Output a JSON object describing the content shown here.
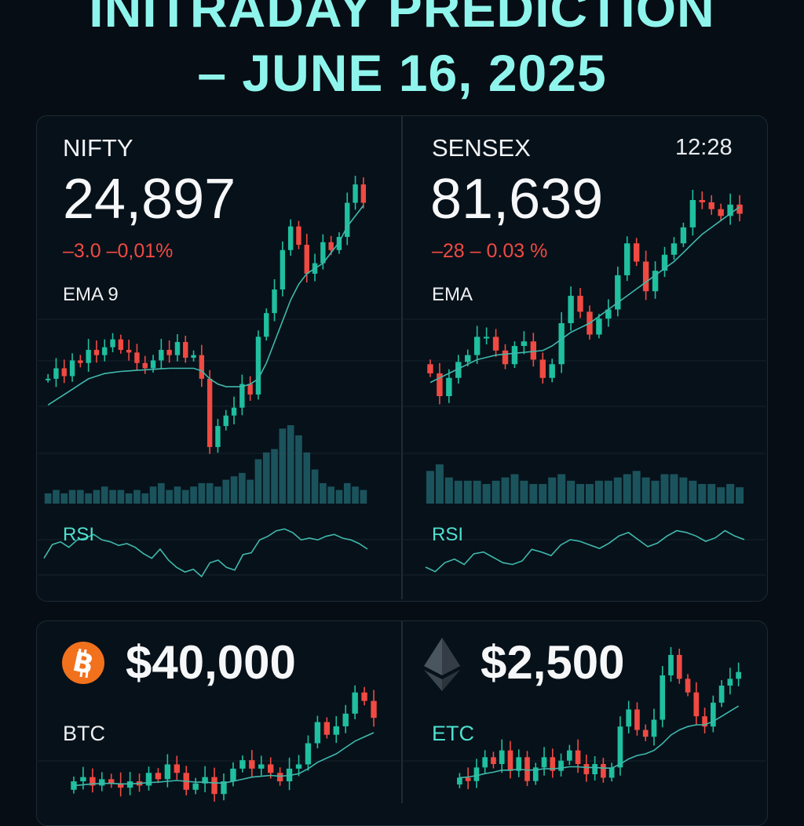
{
  "header": {
    "line1": "INITRADAY PREDICTION",
    "line2": "– JUNE 16, 2025"
  },
  "colors": {
    "accent": "#8ff5ec",
    "up": "#1fbf9f",
    "down": "#f04a42",
    "ema": "#3fb9ac",
    "volume": "#1f5f68",
    "grid": "#16222c",
    "bitcoin": "#f2711c"
  },
  "nifty": {
    "label": "NIFTY",
    "price": "24,897",
    "change": "–3.0 –0,01%",
    "indicator": "EMA 9",
    "rsi_label": "RSI"
  },
  "sensex": {
    "label": "SENSEX",
    "time": "12:28",
    "price": "81,639",
    "change": "–28  – 0.03 %",
    "indicator": "EMA",
    "rsi_label": "RSI"
  },
  "btc": {
    "icon": "bitcoin-icon",
    "price": "$40,000",
    "label": "BTC"
  },
  "eth": {
    "icon": "ethereum-icon",
    "price": "$2,500",
    "label": "ETC"
  },
  "chart_data": [
    {
      "type": "candlestick",
      "id": "nifty",
      "title": "NIFTY",
      "candles": [
        [
          0.5,
          0.5
        ],
        [
          0.5,
          0.7
        ],
        [
          0.7,
          0.55
        ],
        [
          0.55,
          0.85
        ],
        [
          0.85,
          0.8
        ],
        [
          0.8,
          1.05
        ],
        [
          1.05,
          0.95
        ],
        [
          0.95,
          1.1
        ],
        [
          1.1,
          1.25
        ],
        [
          1.25,
          1.05
        ],
        [
          1.05,
          1.0
        ],
        [
          1.0,
          0.8
        ],
        [
          0.8,
          0.7
        ],
        [
          0.7,
          0.85
        ],
        [
          0.85,
          1.05
        ],
        [
          1.05,
          0.95
        ],
        [
          0.95,
          1.2
        ],
        [
          1.2,
          0.9
        ],
        [
          0.9,
          0.95
        ],
        [
          0.95,
          0.5
        ],
        [
          0.5,
          -0.8
        ],
        [
          -0.8,
          -0.4
        ],
        [
          -0.4,
          -0.2
        ],
        [
          -0.2,
          -0.05
        ],
        [
          -0.05,
          0.4
        ],
        [
          0.4,
          0.2
        ],
        [
          0.2,
          1.3
        ],
        [
          1.3,
          1.75
        ],
        [
          1.75,
          2.2
        ],
        [
          2.2,
          2.95
        ],
        [
          2.95,
          3.4
        ],
        [
          3.4,
          3.05
        ],
        [
          3.05,
          2.5
        ],
        [
          2.5,
          2.7
        ],
        [
          2.7,
          3.1
        ],
        [
          3.1,
          2.95
        ],
        [
          2.95,
          3.2
        ],
        [
          3.2,
          3.85
        ],
        [
          3.85,
          4.2
        ],
        [
          4.2,
          3.85
        ]
      ],
      "volume": [
        3,
        4,
        3,
        4,
        4,
        3,
        4,
        5,
        4,
        4,
        3,
        4,
        3,
        5,
        6,
        4,
        5,
        4,
        5,
        6,
        6,
        5,
        7,
        8,
        9,
        7,
        13,
        15,
        16,
        22,
        23,
        20,
        15,
        10,
        6,
        5,
        4,
        6,
        5,
        4
      ],
      "ema": [
        0.0,
        0.1,
        0.2,
        0.3,
        0.4,
        0.5,
        0.55,
        0.6,
        0.62,
        0.64,
        0.65,
        0.66,
        0.67,
        0.68,
        0.69,
        0.7,
        0.7,
        0.7,
        0.7,
        0.65,
        0.5,
        0.4,
        0.35,
        0.35,
        0.35,
        0.4,
        0.5,
        0.8,
        1.2,
        1.6,
        2.0,
        2.3,
        2.5,
        2.6,
        2.7,
        2.9,
        3.1,
        3.4,
        3.6,
        3.8
      ],
      "rsi": [
        40,
        55,
        58,
        52,
        60,
        62,
        66,
        60,
        58,
        54,
        56,
        52,
        45,
        40,
        50,
        38,
        30,
        25,
        28,
        20,
        35,
        38,
        30,
        27,
        44,
        46,
        60,
        64,
        70,
        72,
        68,
        60,
        62,
        60,
        64,
        66,
        62,
        60,
        56,
        50
      ]
    },
    {
      "type": "candlestick",
      "id": "sensex",
      "title": "SENSEX",
      "candles": [
        [
          0.4,
          0.2
        ],
        [
          0.2,
          -0.3
        ],
        [
          -0.3,
          0.1
        ],
        [
          0.1,
          0.45
        ],
        [
          0.45,
          0.6
        ],
        [
          0.6,
          1.0
        ],
        [
          1.0,
          1.0
        ],
        [
          1.0,
          0.7
        ],
        [
          0.7,
          0.4
        ],
        [
          0.4,
          0.8
        ],
        [
          0.8,
          0.9
        ],
        [
          0.9,
          0.5
        ],
        [
          0.5,
          0.1
        ],
        [
          0.1,
          0.4
        ],
        [
          0.4,
          1.3
        ],
        [
          1.3,
          1.9
        ],
        [
          1.9,
          1.55
        ],
        [
          1.55,
          1.05
        ],
        [
          1.05,
          1.4
        ],
        [
          1.4,
          1.6
        ],
        [
          1.6,
          2.35
        ],
        [
          2.35,
          3.05
        ],
        [
          3.05,
          2.65
        ],
        [
          2.65,
          2.0
        ],
        [
          2.0,
          2.45
        ],
        [
          2.45,
          2.8
        ],
        [
          2.8,
          3.05
        ],
        [
          3.05,
          3.4
        ],
        [
          3.4,
          4.0
        ],
        [
          4.0,
          3.95
        ],
        [
          3.95,
          3.8
        ],
        [
          3.8,
          3.65
        ],
        [
          3.65,
          3.9
        ],
        [
          3.9,
          3.7
        ]
      ],
      "volume": [
        10,
        12,
        8,
        7,
        7,
        7,
        6,
        7,
        8,
        9,
        7,
        6,
        6,
        8,
        9,
        7,
        6,
        6,
        7,
        7,
        8,
        9,
        10,
        8,
        7,
        9,
        9,
        8,
        7,
        6,
        6,
        5,
        6,
        5
      ],
      "ema": [
        0.0,
        0.1,
        0.2,
        0.3,
        0.4,
        0.5,
        0.55,
        0.6,
        0.62,
        0.64,
        0.66,
        0.68,
        0.7,
        0.8,
        0.95,
        1.1,
        1.2,
        1.3,
        1.45,
        1.6,
        1.75,
        1.9,
        2.05,
        2.2,
        2.35,
        2.5,
        2.65,
        2.85,
        3.05,
        3.25,
        3.4,
        3.55,
        3.7,
        3.85
      ],
      "rsi": [
        35,
        30,
        40,
        44,
        38,
        50,
        52,
        46,
        40,
        38,
        42,
        55,
        52,
        48,
        60,
        66,
        64,
        60,
        56,
        62,
        70,
        74,
        66,
        58,
        62,
        70,
        76,
        74,
        70,
        64,
        68,
        76,
        70,
        66
      ]
    },
    {
      "type": "candlestick",
      "id": "btc",
      "title": "BTC",
      "candles": [
        [
          0.3,
          0.5
        ],
        [
          0.5,
          0.6
        ],
        [
          0.6,
          0.4
        ],
        [
          0.4,
          0.55
        ],
        [
          0.55,
          0.45
        ],
        [
          0.45,
          0.35
        ],
        [
          0.35,
          0.5
        ],
        [
          0.5,
          0.4
        ],
        [
          0.4,
          0.7
        ],
        [
          0.7,
          0.55
        ],
        [
          0.55,
          0.9
        ],
        [
          0.9,
          0.7
        ],
        [
          0.7,
          0.3
        ],
        [
          0.3,
          0.45
        ],
        [
          0.45,
          0.6
        ],
        [
          0.6,
          0.2
        ],
        [
          0.2,
          0.5
        ],
        [
          0.5,
          0.8
        ],
        [
          0.8,
          1.0
        ],
        [
          1.0,
          0.8
        ],
        [
          0.8,
          0.9
        ],
        [
          0.9,
          0.7
        ],
        [
          0.7,
          0.5
        ],
        [
          0.5,
          0.8
        ],
        [
          0.8,
          0.9
        ],
        [
          0.9,
          1.4
        ],
        [
          1.4,
          1.9
        ],
        [
          1.9,
          1.6
        ],
        [
          1.6,
          1.8
        ],
        [
          1.8,
          2.1
        ],
        [
          2.1,
          2.6
        ],
        [
          2.6,
          2.4
        ],
        [
          2.4,
          2.0
        ]
      ],
      "volume": [],
      "ema": [
        0.4,
        0.42,
        0.44,
        0.45,
        0.45,
        0.44,
        0.44,
        0.45,
        0.47,
        0.48,
        0.5,
        0.52,
        0.5,
        0.48,
        0.48,
        0.46,
        0.46,
        0.5,
        0.55,
        0.6,
        0.62,
        0.64,
        0.62,
        0.64,
        0.68,
        0.8,
        0.95,
        1.05,
        1.15,
        1.3,
        1.45,
        1.55,
        1.65
      ],
      "rsi": []
    },
    {
      "type": "candlestick",
      "id": "eth",
      "title": "ETC",
      "candles": [
        [
          0.1,
          0.3
        ],
        [
          0.3,
          0.2
        ],
        [
          0.2,
          0.6
        ],
        [
          0.6,
          0.9
        ],
        [
          0.9,
          0.7
        ],
        [
          0.7,
          1.1
        ],
        [
          1.1,
          0.5
        ],
        [
          0.5,
          0.9
        ],
        [
          0.9,
          0.2
        ],
        [
          0.2,
          0.6
        ],
        [
          0.6,
          0.9
        ],
        [
          0.9,
          0.5
        ],
        [
          0.5,
          0.8
        ],
        [
          0.8,
          1.1
        ],
        [
          1.1,
          0.7
        ],
        [
          0.7,
          0.4
        ],
        [
          0.4,
          0.7
        ],
        [
          0.7,
          0.3
        ],
        [
          0.3,
          0.6
        ],
        [
          0.6,
          1.8
        ],
        [
          1.8,
          2.3
        ],
        [
          2.3,
          1.7
        ],
        [
          1.7,
          1.5
        ],
        [
          1.5,
          2.0
        ],
        [
          2.0,
          3.3
        ],
        [
          3.3,
          3.9
        ],
        [
          3.9,
          3.2
        ],
        [
          3.2,
          2.8
        ],
        [
          2.8,
          2.1
        ],
        [
          2.1,
          1.8
        ],
        [
          1.8,
          2.5
        ],
        [
          2.5,
          3.0
        ],
        [
          3.0,
          3.2
        ],
        [
          3.2,
          3.4
        ]
      ],
      "volume": [],
      "ema": [
        0.3,
        0.32,
        0.36,
        0.42,
        0.46,
        0.52,
        0.52,
        0.55,
        0.52,
        0.53,
        0.56,
        0.56,
        0.58,
        0.62,
        0.62,
        0.6,
        0.6,
        0.58,
        0.58,
        0.7,
        0.85,
        0.95,
        1.0,
        1.1,
        1.3,
        1.55,
        1.7,
        1.8,
        1.85,
        1.85,
        1.95,
        2.1,
        2.25,
        2.4
      ],
      "rsi": []
    }
  ]
}
